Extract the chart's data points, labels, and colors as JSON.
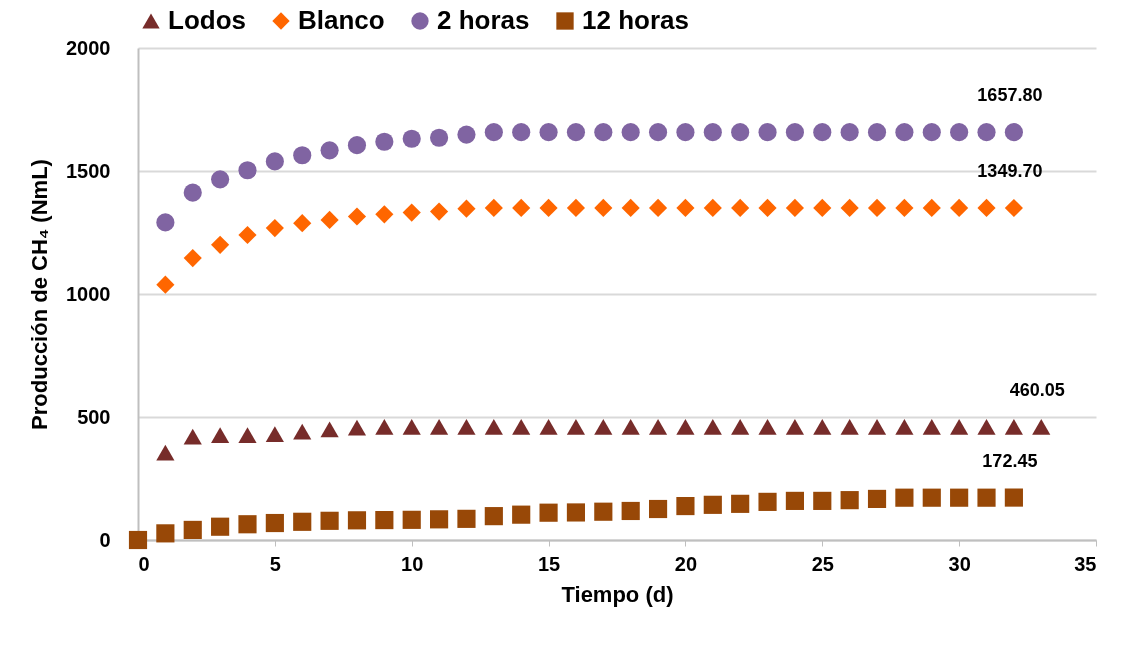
{
  "chart_data": {
    "type": "scatter",
    "xlabel": "Tiempo (d)",
    "ylabel": "Producción de CH₄ (NmL)",
    "xlim": [
      0,
      35
    ],
    "xticks": [
      0,
      5,
      10,
      15,
      20,
      25,
      30,
      35
    ],
    "ylim": [
      0,
      2000
    ],
    "yticks": [
      0,
      500,
      1000,
      1500,
      2000
    ],
    "grid": "y",
    "legend": "top",
    "series": [
      {
        "name": "Lodos",
        "color": "#772c2a",
        "marker": "triangle",
        "x": [
          1,
          2,
          3,
          4,
          5,
          6,
          7,
          8,
          9,
          10,
          11,
          12,
          13,
          14,
          15,
          16,
          17,
          18,
          19,
          20,
          21,
          22,
          23,
          24,
          25,
          26,
          27,
          28,
          29,
          30,
          31,
          32,
          33
        ],
        "values": [
          355,
          420,
          426,
          426,
          430,
          441,
          450,
          457,
          460,
          460,
          460,
          460,
          460,
          460,
          460,
          460,
          460,
          460,
          460,
          460,
          460,
          460,
          460,
          460,
          460,
          460,
          460,
          460,
          460,
          460,
          460,
          460,
          460.05
        ],
        "value_labels": [
          null,
          null,
          null,
          null,
          null,
          null,
          null,
          null,
          null,
          null,
          null,
          null,
          null,
          null,
          null,
          null,
          null,
          null,
          null,
          null,
          null,
          null,
          null,
          null,
          null,
          null,
          null,
          null,
          null,
          null,
          null,
          null,
          "460.05"
        ]
      },
      {
        "name": "Blanco",
        "color": "#ff6600",
        "marker": "diamond",
        "x": [
          1,
          2,
          3,
          4,
          5,
          6,
          7,
          8,
          9,
          10,
          11,
          12,
          13,
          14,
          15,
          16,
          17,
          18,
          19,
          20,
          21,
          22,
          23,
          24,
          25,
          26,
          27,
          28,
          29,
          30,
          31,
          32
        ],
        "values": [
          1038,
          1146,
          1200,
          1240,
          1268,
          1288,
          1301,
          1315,
          1324,
          1331,
          1335,
          1347,
          1350,
          1350,
          1350,
          1350,
          1350,
          1350,
          1350,
          1350,
          1350,
          1350,
          1350,
          1350,
          1350,
          1350,
          1350,
          1350,
          1350,
          1350,
          1350,
          1349.7
        ],
        "value_labels": [
          null,
          null,
          null,
          null,
          null,
          null,
          null,
          null,
          null,
          null,
          null,
          null,
          null,
          null,
          null,
          null,
          null,
          null,
          null,
          null,
          null,
          null,
          null,
          null,
          null,
          null,
          null,
          null,
          null,
          null,
          null,
          "1349.70"
        ]
      },
      {
        "name": "2 horas",
        "color": "#8064a2",
        "marker": "circle",
        "x": [
          1,
          2,
          3,
          4,
          5,
          6,
          7,
          8,
          9,
          10,
          11,
          12,
          13,
          14,
          15,
          16,
          17,
          18,
          19,
          20,
          21,
          22,
          23,
          24,
          25,
          26,
          27,
          28,
          29,
          30,
          31,
          32
        ],
        "values": [
          1291,
          1412,
          1466,
          1503,
          1539,
          1564,
          1584,
          1605,
          1619,
          1631,
          1635,
          1648,
          1658,
          1658,
          1658,
          1658,
          1658,
          1658,
          1658,
          1658,
          1658,
          1658,
          1658,
          1658,
          1658,
          1658,
          1658,
          1658,
          1658,
          1658,
          1658,
          1657.8
        ],
        "value_labels": [
          null,
          null,
          null,
          null,
          null,
          null,
          null,
          null,
          null,
          null,
          null,
          null,
          null,
          null,
          null,
          null,
          null,
          null,
          null,
          null,
          null,
          null,
          null,
          null,
          null,
          null,
          null,
          null,
          null,
          null,
          null,
          "1657.80"
        ]
      },
      {
        "name": "12 horas",
        "color": "#984807",
        "marker": "square",
        "x": [
          0,
          1,
          2,
          3,
          4,
          5,
          6,
          7,
          8,
          9,
          10,
          11,
          12,
          13,
          14,
          15,
          16,
          17,
          18,
          19,
          20,
          21,
          22,
          23,
          24,
          25,
          26,
          27,
          28,
          29,
          30,
          31,
          32
        ],
        "values": [
          0,
          27,
          41,
          54,
          64,
          69,
          74,
          78,
          80,
          81,
          82,
          84,
          86,
          97,
          103,
          111,
          112,
          115,
          118,
          126,
          138,
          143,
          147,
          155,
          159,
          159,
          162,
          167,
          172,
          172,
          172,
          172,
          172.45
        ],
        "value_labels": [
          null,
          null,
          null,
          null,
          null,
          null,
          null,
          null,
          null,
          null,
          null,
          null,
          null,
          null,
          null,
          null,
          null,
          null,
          null,
          null,
          null,
          null,
          null,
          null,
          null,
          null,
          null,
          null,
          null,
          null,
          null,
          null,
          "172.45"
        ]
      }
    ]
  }
}
